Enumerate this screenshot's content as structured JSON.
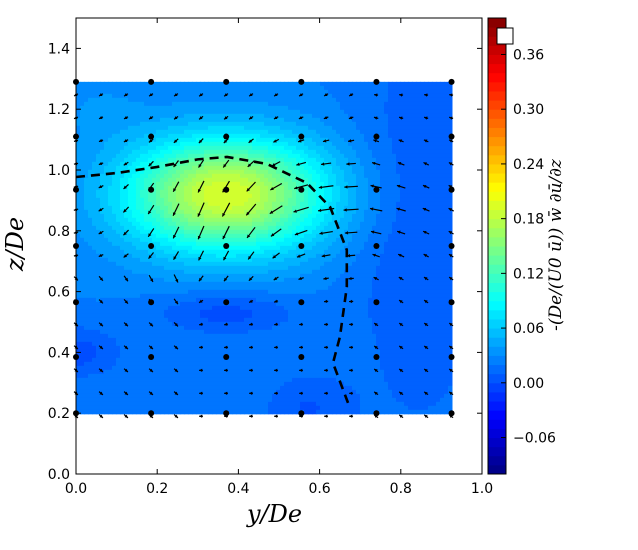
{
  "chart_data": {
    "type": "contour-quiver",
    "xlabel": "y/De",
    "ylabel": "z/De",
    "xlim": [
      0.0,
      1.0
    ],
    "ylim": [
      0.0,
      1.5
    ],
    "xticks": [
      "0.0",
      "0.2",
      "0.4",
      "0.6",
      "0.8",
      "1.0"
    ],
    "yticks": [
      "0.0",
      "0.2",
      "0.4",
      "0.6",
      "0.8",
      "1.0",
      "1.2",
      "1.4"
    ],
    "colorbar": {
      "label": "-(De/(U0 ū)) w̄ ∂ū/∂z",
      "range": [
        -0.1,
        0.4
      ],
      "ticks": [
        "-0.06",
        "0.00",
        "0.06",
        "0.12",
        "0.18",
        "0.24",
        "0.30",
        "0.36"
      ],
      "colormap": "jet"
    },
    "domain": {
      "y": [
        0.0,
        0.925
      ],
      "z": [
        0.2,
        1.29
      ]
    },
    "field": {
      "base": 0.025,
      "components": [
        {
          "y": 0.37,
          "z": 0.92,
          "sy": 0.17,
          "sz": 0.13,
          "amp": 0.17
        },
        {
          "y": 0.85,
          "z": 0.8,
          "sy": 0.12,
          "sz": 0.5,
          "amp": -0.02
        },
        {
          "y": 0.37,
          "z": 0.53,
          "sy": 0.12,
          "sz": 0.05,
          "amp": -0.025
        },
        {
          "y": 0.0,
          "z": 0.4,
          "sy": 0.08,
          "sz": 0.06,
          "amp": -0.025
        },
        {
          "y": 0.57,
          "z": 0.22,
          "sy": 0.08,
          "sz": 0.08,
          "amp": -0.02
        },
        {
          "y": 0.06,
          "z": 1.2,
          "sy": 0.08,
          "sz": 0.08,
          "amp": 0.01
        }
      ]
    },
    "measurement_points": {
      "y": [
        0.0,
        0.185,
        0.37,
        0.555,
        0.74,
        0.925
      ],
      "z": [
        0.2,
        0.385,
        0.565,
        0.75,
        0.935,
        1.11,
        1.29
      ]
    },
    "quiver": {
      "y_start": 0.0,
      "y_step": 0.0616,
      "cols": 16,
      "z_start": 0.19,
      "z_step": 0.0755,
      "rows": 15
    },
    "dashed_contour": {
      "y": [
        0.0,
        0.1,
        0.2,
        0.3,
        0.372,
        0.47,
        0.569,
        0.626,
        0.667,
        0.667,
        0.65,
        0.633,
        0.67
      ],
      "z": [
        0.977,
        0.99,
        1.01,
        1.035,
        1.043,
        1.02,
        0.957,
        0.878,
        0.737,
        0.615,
        0.451,
        0.365,
        0.234
      ]
    },
    "legend_marker": "white-square"
  }
}
